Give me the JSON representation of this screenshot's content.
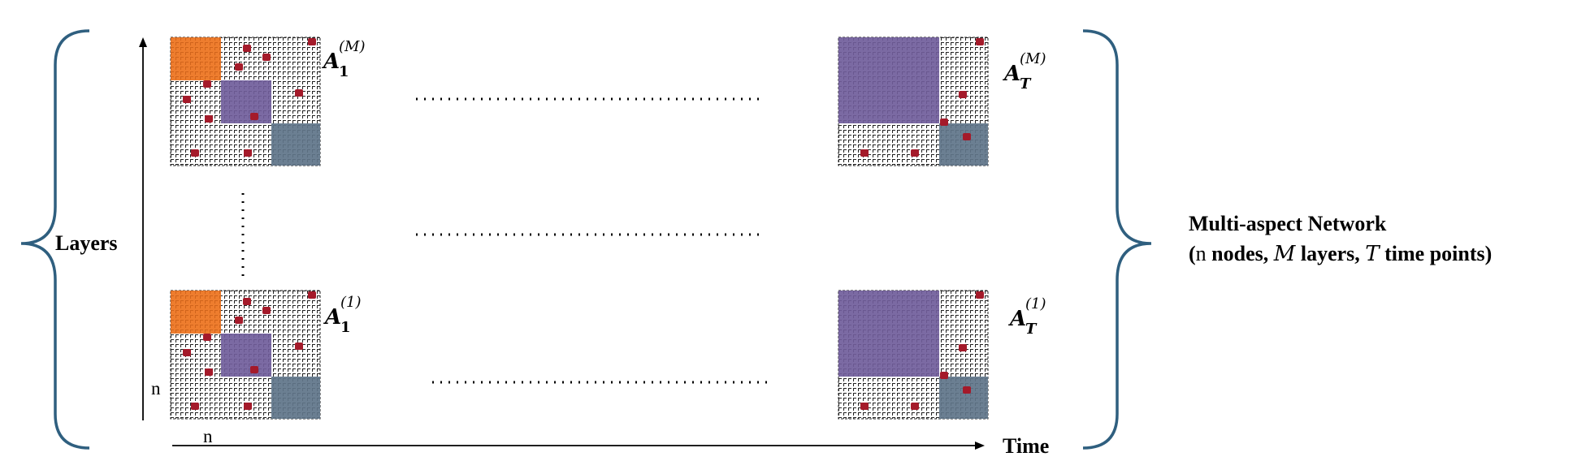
{
  "axes": {
    "vertical_label": "Layers",
    "horizontal_label": "Time",
    "n_label_left": "n",
    "n_label_bottom": "n"
  },
  "network": {
    "title": "Multi-aspect Network",
    "subtitle_open": "(",
    "subtitle_n": "n",
    "subtitle_nodes": " nodes, ",
    "subtitle_M": "M",
    "subtitle_layers": " layers, ",
    "subtitle_T": "T",
    "subtitle_time": " time points)"
  },
  "matrices": [
    {
      "id": "A1M",
      "base": "A",
      "sub": "1",
      "sup": "(M)",
      "sup_italic": "M"
    },
    {
      "id": "ATM",
      "base": "A",
      "sub": "T",
      "sup": "(M)",
      "sup_italic": "M"
    },
    {
      "id": "A11",
      "base": "A",
      "sub": "1",
      "sup": "(1)"
    },
    {
      "id": "AT1",
      "base": "A",
      "sub": "T",
      "sup": "(1)"
    }
  ],
  "colors": {
    "brace": "#2f5f7f",
    "orange_block": "#ee7d2e",
    "purple_block": "#7b6aa3",
    "slate_block": "#6b7f92",
    "edge_dot": "#a41a2a",
    "axis": "#000000"
  }
}
